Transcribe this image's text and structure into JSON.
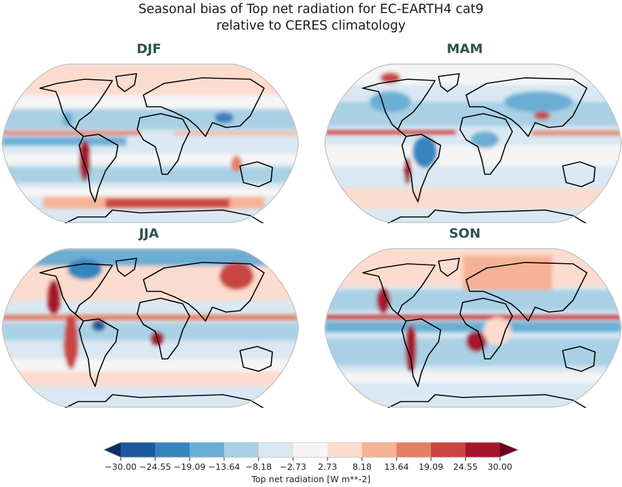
{
  "title": {
    "line1": "Seasonal bias of Top net radiation for EC-EARTH4 cat9",
    "line2": "relative to CERES climatology"
  },
  "panels": [
    {
      "id": "djf",
      "label": "DJF"
    },
    {
      "id": "mam",
      "label": "MAM"
    },
    {
      "id": "jja",
      "label": "JJA"
    },
    {
      "id": "son",
      "label": "SON"
    }
  ],
  "colorbar": {
    "label": "Top net radiation [W m**-2]",
    "ticks": [
      "−30.00",
      "−24.55",
      "−19.09",
      "−13.64",
      "−8.18",
      "−2.73",
      "2.73",
      "8.18",
      "13.64",
      "19.09",
      "24.55",
      "30.00"
    ],
    "colors": [
      "#1c5a9d",
      "#3684bd",
      "#6aaed4",
      "#a9d0e5",
      "#d9e8f2",
      "#f5f5f5",
      "#fcdcce",
      "#f6b296",
      "#e47f64",
      "#c84542",
      "#a8152b"
    ],
    "under_color": "#0b2f62",
    "over_color": "#6a0322",
    "extend": "both"
  },
  "chart_data": {
    "type": "heatmap",
    "title": "Seasonal bias of Top net radiation for EC-EARTH4 cat9 relative to CERES climatology",
    "subplots": [
      "DJF",
      "MAM",
      "JJA",
      "SON"
    ],
    "projection": "Robinson (global map)",
    "variable": "Top net radiation bias",
    "units": "W m**-2",
    "levels": [
      -30.0,
      -24.55,
      -19.09,
      -13.64,
      -8.18,
      -2.73,
      2.73,
      8.18,
      13.64,
      19.09,
      24.55,
      30.0
    ],
    "vmin": -30.0,
    "vmax": 30.0,
    "colormap": "RdBu_r",
    "colorbar_label": "Top net radiation [W m**-2]",
    "colorbar_position": "bottom",
    "notable_features": {
      "DJF": "Strong positive bias over Southern Ocean near Antarctica, positive along west coast of South America; negative over tropical Pacific bands and Tibet",
      "MAM": "Negative over Amazon, North America and Eurasia; positive over Hudson Bay, west coast of South America, Southern Ocean",
      "JJA": "Strong positive off California and Namibia/Angola coast, negative over Arctic and Amazon",
      "SON": "Strong positive off Peru/Chile and Namibia coasts, positive over northern Eurasia; negative over Southern Hemisphere oceans"
    }
  }
}
